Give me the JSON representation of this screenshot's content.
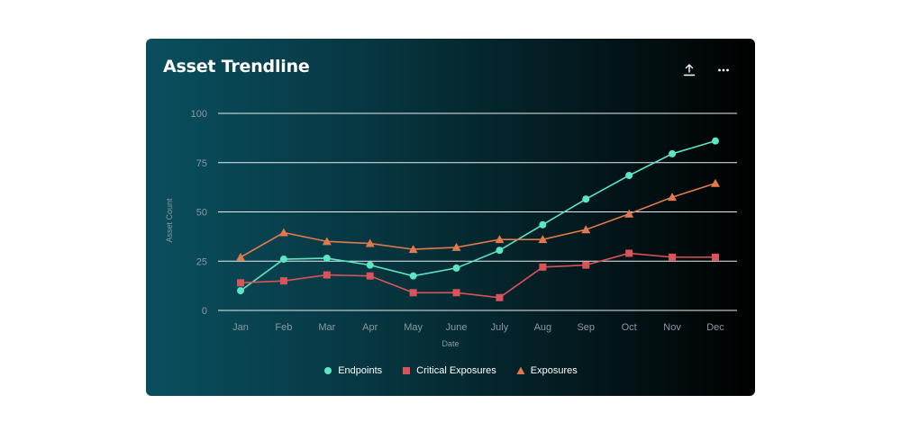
{
  "card": {
    "title": "Asset Trendline",
    "toolbar": {
      "export_icon": "export-icon",
      "more_icon": "more-horizontal-icon"
    }
  },
  "colors": {
    "endpoints": "#5ce6c4",
    "critical": "#d9545a",
    "exposures": "#e07a4e",
    "grid": "#e8eef0",
    "axis_text": "#8a9aa3"
  },
  "chart_data": {
    "type": "line",
    "title": "",
    "xlabel": "Date",
    "ylabel": "Asset Count",
    "categories": [
      "Jan",
      "Feb",
      "Mar",
      "Apr",
      "May",
      "June",
      "July",
      "Aug",
      "Sep",
      "Oct",
      "Nov",
      "Dec"
    ],
    "ylim": [
      0,
      100
    ],
    "yticks": [
      0,
      25,
      50,
      75,
      100
    ],
    "grid": true,
    "legend_position": "bottom",
    "series": [
      {
        "name": "Endpoints",
        "marker": "circle",
        "color": "#5ce6c4",
        "values": [
          10,
          26,
          26.5,
          23,
          17.5,
          21.5,
          30.5,
          43.5,
          56.5,
          68.5,
          79.5,
          86
        ]
      },
      {
        "name": "Critical Exposures",
        "marker": "square",
        "color": "#d9545a",
        "values": [
          14,
          15,
          18,
          17.5,
          9,
          9,
          6.5,
          22,
          23,
          29,
          27,
          27
        ]
      },
      {
        "name": "Exposures",
        "marker": "triangle",
        "color": "#e07a4e",
        "values": [
          27,
          39.5,
          35,
          34,
          31,
          32,
          36,
          36,
          41,
          49,
          57.5,
          64.5
        ]
      }
    ]
  }
}
